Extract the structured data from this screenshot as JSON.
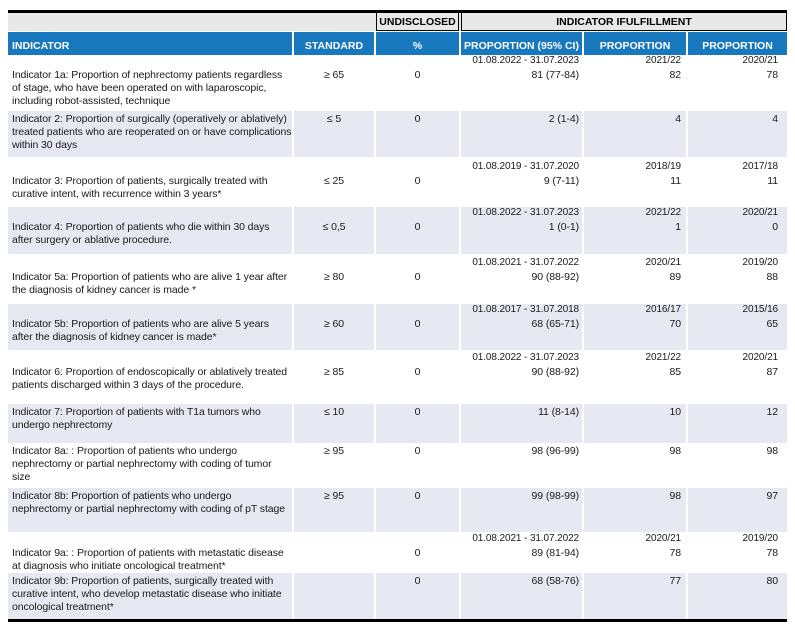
{
  "table": {
    "band": {
      "undisclosed": "UNDISCLOSED",
      "fulfillment": "INDICATOR IFULFILLMENT"
    },
    "columns": [
      "INDICATOR",
      "STANDARD",
      "%",
      "PROPORTION (95% CI)",
      "PROPORTION",
      "PROPORTION"
    ],
    "colors": {
      "header_blue": "#1878be",
      "row_shade": "#e6e9f2",
      "band_gray": "#e8e8e8",
      "rule_black": "#000000"
    },
    "rows": [
      {
        "indicator": "Indicator 1a: Proportion of nephrectomy patients regardless of stage, who have been operated on with laparoscopic, including robot-assisted, technique",
        "standard": "≥ 65",
        "undisclosed": "0",
        "period": "01.08.2022 - 31.07.2023",
        "year1": "2021/22",
        "year2": "2020/21",
        "ci": "81 (77-84)",
        "prop1": "82",
        "prop2": "78",
        "shaded": false
      },
      {
        "indicator": "Indicator 2: Proportion of surgically (operatively or ablatively) treated patients who are reoperated on or have complications within 30 days",
        "standard": "≤ 5",
        "undisclosed": "0",
        "ci": "2 (1-4)",
        "prop1": "4",
        "prop2": "4",
        "shaded": true
      },
      {
        "indicator": "Indicator 3: Proportion of patients, surgically treated with curative intent, with recurrence within 3 years*",
        "standard": "≤ 25",
        "undisclosed": "0",
        "period": "01.08.2019 - 31.07.2020",
        "year1": "2018/19",
        "year2": "2017/18",
        "ci": "9 (7-11)",
        "prop1": "11",
        "prop2": "11",
        "shaded": false
      },
      {
        "indicator": "Indicator 4: Proportion of patients who die within 30 days after surgery or ablative procedure.",
        "standard": "≤ 0,5",
        "undisclosed": "0",
        "period": "01.08.2022 - 31.07.2023",
        "year1": "2021/22",
        "year2": "2020/21",
        "ci": "1 (0-1)",
        "prop1": "1",
        "prop2": "0",
        "shaded": true
      },
      {
        "indicator": "Indicator 5a: Proportion of patients who are alive 1 year after the diagnosis of kidney cancer is made *",
        "standard": "≥ 80",
        "undisclosed": "0",
        "period": "01.08.2021 - 31.07.2022",
        "year1": "2020/21",
        "year2": "2019/20",
        "ci": "90 (88-92)",
        "prop1": "89",
        "prop2": "88",
        "shaded": false
      },
      {
        "indicator": "Indicator 5b: Proportion of patients who are alive 5 years after the diagnosis of kidney cancer is made*",
        "standard": "≥ 60",
        "undisclosed": "0",
        "period": "01.08.2017 - 31.07.2018",
        "year1": "2016/17",
        "year2": "2015/16",
        "ci": "68 (65-71)",
        "prop1": "70",
        "prop2": "65",
        "shaded": true
      },
      {
        "indicator": "Indicator 6: Proportion of endoscopically or ablatively treated patients discharged within 3 days of the procedure.",
        "standard": "≥ 85",
        "undisclosed": "0",
        "period": "01.08.2022 - 31.07.2023",
        "year1": "2021/22",
        "year2": "2020/21",
        "ci": "90 (88-92)",
        "prop1": "85",
        "prop2": "87",
        "shaded": false
      },
      {
        "indicator": "Indicator 7: Proportion of patients with T1a tumors who undergo nephrectomy",
        "standard": "≤ 10",
        "undisclosed": "0",
        "ci": "11 (8-14)",
        "prop1": "10",
        "prop2": "12",
        "shaded": true
      },
      {
        "indicator": "Indicator 8a: : Proportion of patients who undergo nephrectomy or partial nephrectomy with coding of tumor size",
        "standard": "≥ 95",
        "undisclosed": "0",
        "ci": "98 (96-99)",
        "prop1": "98",
        "prop2": "98",
        "shaded": false
      },
      {
        "indicator": "Indicator 8b: Proportion of patients who undergo nephrectomy or partial nephrectomy with coding of pT stage",
        "standard": "≥ 95",
        "undisclosed": "0",
        "ci": "99 (98-99)",
        "prop1": "98",
        "prop2": "97",
        "shaded": true
      },
      {
        "indicator": "Indicator 9a: : Proportion of patients with metastatic disease at diagnosis who initiate oncological treatment*",
        "standard": "",
        "undisclosed": "0",
        "period": "01.08.2021 - 31.07.2022",
        "year1": "2020/21",
        "year2": "2019/20",
        "ci": "89 (81-94)",
        "prop1": "78",
        "prop2": "78",
        "shaded": false
      },
      {
        "indicator": "Indicator 9b: Proportion of patients, surgically treated with curative intent, who develop metastatic disease who initiate oncological treatment*",
        "standard": "",
        "undisclosed": "0",
        "ci": "68 (58-76)",
        "prop1": "77",
        "prop2": "80",
        "shaded": true
      }
    ]
  }
}
